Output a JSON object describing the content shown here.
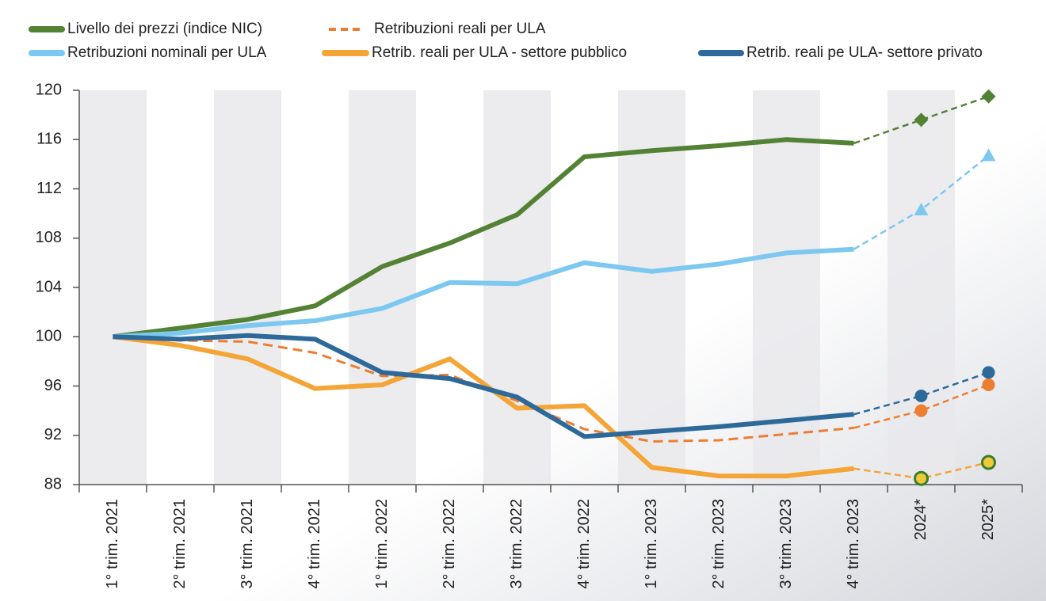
{
  "chart_data": {
    "type": "line",
    "categories": [
      "1° trim. 2021",
      "2° trim. 2021",
      "3° trim. 2021",
      "4° trim. 2021",
      "1° trim. 2022",
      "2° trim. 2022",
      "3° trim. 2022",
      "4° trim. 2022",
      "1° trim. 2023",
      "2° trim. 2023",
      "3° trim. 2023",
      "4° trim. 2023",
      "2024*",
      "2025*"
    ],
    "series": [
      {
        "name": "Livello dei prezzi (indice NIC)",
        "color": "#548235",
        "marker": "diamond",
        "values": [
          100,
          100.7,
          101.4,
          102.5,
          105.7,
          107.6,
          109.9,
          114.6,
          115.1,
          115.5,
          116.0,
          115.7,
          117.6,
          119.5
        ]
      },
      {
        "name": "Retribuzioni reali per ULA",
        "color": "#ed7d31",
        "dashed": true,
        "marker": "circle",
        "values": [
          100,
          99.7,
          99.6,
          98.7,
          96.8,
          96.9,
          94.8,
          92.5,
          91.5,
          91.6,
          92.1,
          92.6,
          94.0,
          96.1
        ]
      },
      {
        "name": "Retribuzioni nominali per ULA",
        "color": "#7cc8f0",
        "marker": "triangle",
        "values": [
          100,
          100.3,
          100.9,
          101.3,
          102.3,
          104.4,
          104.3,
          106.0,
          105.3,
          105.9,
          106.8,
          107.1,
          110.3,
          114.7
        ]
      },
      {
        "name": "Retrib. reali per ULA - settore pubblico",
        "color": "#f4a536",
        "marker": "circle",
        "marker_fill": "#f0c83c",
        "marker_stroke": "#3a7d2a",
        "values": [
          100,
          99.3,
          98.2,
          95.8,
          96.1,
          98.2,
          94.2,
          94.4,
          89.4,
          88.7,
          88.7,
          89.3,
          88.5,
          89.8
        ]
      },
      {
        "name": "Retrib. reali pe ULA- settore privato",
        "color": "#2e6a99",
        "marker": "circle",
        "values": [
          100,
          99.8,
          100.1,
          99.8,
          97.1,
          96.6,
          95.1,
          91.9,
          92.3,
          92.7,
          93.2,
          93.7,
          95.2,
          97.1
        ]
      }
    ],
    "forecast_from_index": 11,
    "ylim": [
      88,
      120
    ],
    "yticks": [
      88,
      92,
      96,
      100,
      104,
      108,
      112,
      116,
      120
    ],
    "grid": false
  }
}
